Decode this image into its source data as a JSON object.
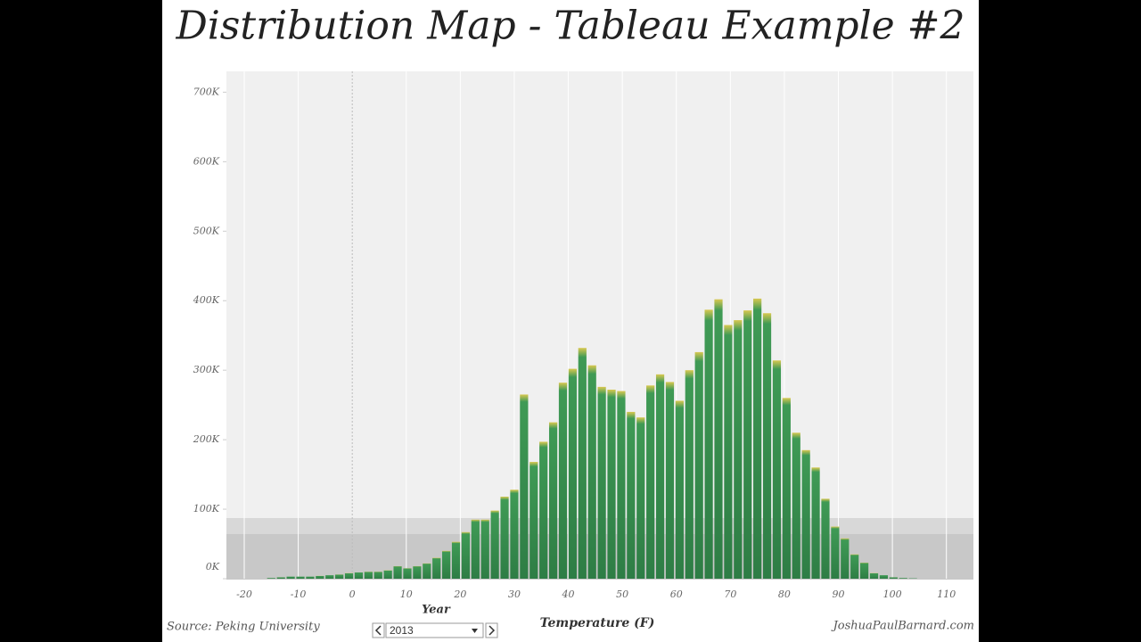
{
  "chart_data": {
    "type": "bar",
    "title": "Distribution Map - Tableau Example #2",
    "x_label": "Temperature (F)",
    "source": "Source:  Peking University",
    "credit": "JoshuaPaulBarnard.com",
    "filter_label": "Year",
    "filter_value": "2013",
    "color": "#3f9a55",
    "x": [
      -15,
      -13.2,
      -11.4,
      -9.6,
      -7.8,
      -6,
      -4.2,
      -2.4,
      -0.6,
      1.2,
      3,
      4.8,
      6.6,
      8.4,
      10.2,
      12,
      13.8,
      15.6,
      17.4,
      19.2,
      21,
      22.8,
      24.6,
      26.4,
      28.2,
      30,
      31.8,
      33.6,
      35.4,
      37.2,
      39,
      40.8,
      42.6,
      44.4,
      46.2,
      48,
      49.8,
      51.6,
      53.4,
      55.2,
      57,
      58.8,
      60.6,
      62.4,
      64.2,
      66,
      67.8,
      69.6,
      71.4,
      73.2,
      75,
      76.8,
      78.6,
      80.4,
      82.2,
      84,
      85.8,
      87.6,
      89.4,
      91.2,
      93,
      94.8,
      96.6,
      98.4,
      100.2,
      102,
      103.8
    ],
    "values": [
      1000,
      2000,
      3000,
      3000,
      3000,
      4000,
      5000,
      6000,
      8000,
      9000,
      10000,
      10000,
      12000,
      18000,
      15000,
      18000,
      22000,
      30000,
      40000,
      53000,
      67000,
      85000,
      85000,
      98000,
      118000,
      128000,
      265000,
      168000,
      197000,
      225000,
      282000,
      302000,
      332000,
      307000,
      276000,
      272000,
      270000,
      240000,
      232000,
      278000,
      294000,
      283000,
      256000,
      300000,
      326000,
      387000,
      402000,
      365000,
      372000,
      386000,
      403000,
      382000,
      314000,
      260000,
      210000,
      185000,
      160000,
      115000,
      75000,
      58000,
      35000,
      23000,
      8000,
      5000,
      2000,
      1000,
      500
    ],
    "xlim": [
      -23.3,
      115
    ],
    "ylim": [
      0,
      730000
    ],
    "xticks": [
      -20,
      -10,
      0,
      10,
      20,
      30,
      40,
      50,
      60,
      70,
      80,
      90,
      100,
      110
    ],
    "yticks": [
      {
        "value": 0,
        "label": "0K"
      },
      {
        "value": 100000,
        "label": "100K"
      },
      {
        "value": 200000,
        "label": "200K"
      },
      {
        "value": 300000,
        "label": "300K"
      },
      {
        "value": 400000,
        "label": "400K"
      },
      {
        "value": 500000,
        "label": "500K"
      },
      {
        "value": 600000,
        "label": "600K"
      },
      {
        "value": 700000,
        "label": "700K"
      }
    ]
  }
}
